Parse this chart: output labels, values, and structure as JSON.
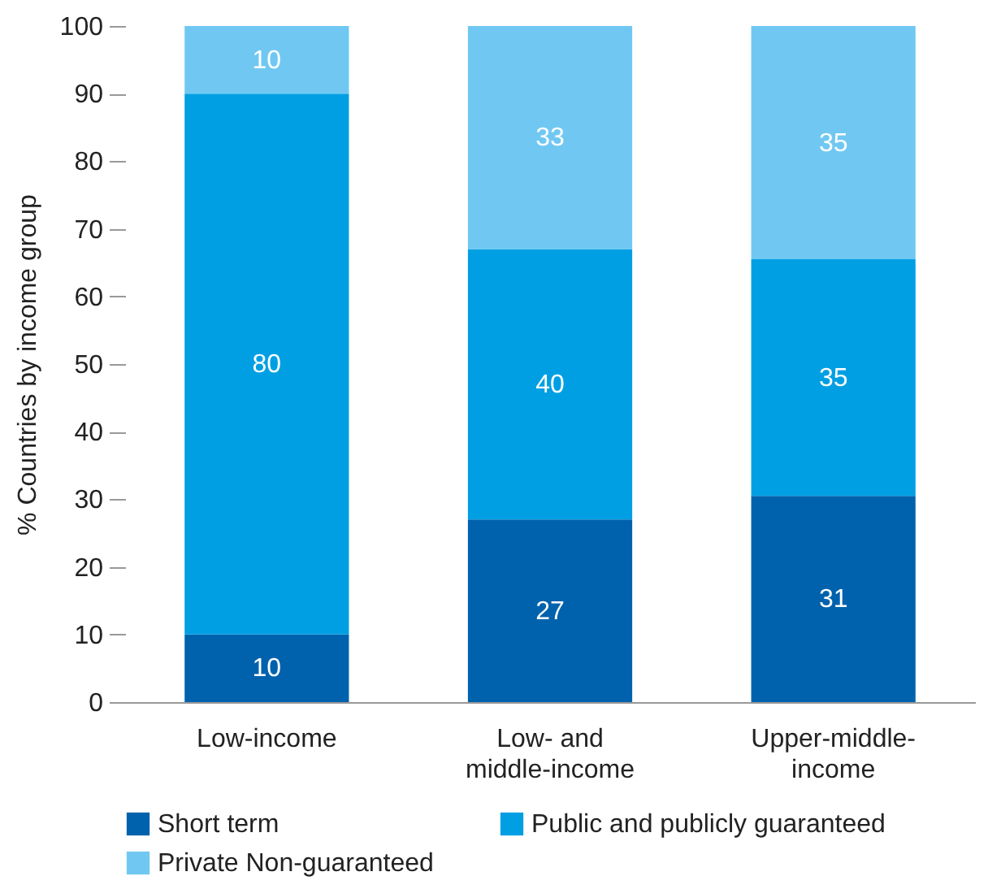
{
  "chart_data": {
    "type": "bar",
    "stacked": true,
    "ylabel": "% Countries by income group",
    "categories": [
      "Low-income",
      "Low- and\nmiddle-income",
      "Upper-middle-\nincome"
    ],
    "series": [
      {
        "name": "Short term",
        "color": "#0062ad",
        "values": [
          10,
          27,
          30.5
        ],
        "value_labels": [
          "10",
          "27",
          "31"
        ]
      },
      {
        "name": "Public and publicly guaranteed",
        "color": "#009fe3",
        "values": [
          80,
          40,
          35
        ],
        "value_labels": [
          "80",
          "40",
          "35"
        ]
      },
      {
        "name": "Private Non-guaranteed",
        "color": "#70c8f2",
        "values": [
          10,
          33,
          34.5
        ],
        "value_labels": [
          "10",
          "33",
          "35"
        ]
      }
    ],
    "ylim": [
      0,
      100
    ],
    "yticks": [
      0,
      10,
      20,
      30,
      40,
      50,
      60,
      70,
      80,
      90,
      100
    ],
    "grid": false,
    "legend": "bottom"
  }
}
